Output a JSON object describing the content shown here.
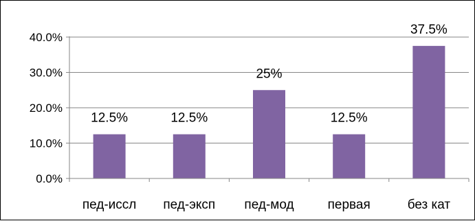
{
  "chart_data": {
    "type": "bar",
    "title": "",
    "xlabel": "",
    "ylabel": "",
    "categories": [
      "пед-иссл",
      "пед-эксп",
      "пед-мод",
      "первая",
      "без кат"
    ],
    "values": [
      12.5,
      12.5,
      25,
      12.5,
      37.5
    ],
    "data_labels": [
      "12.5%",
      "12.5%",
      "25%",
      "12.5%",
      "37.5%"
    ],
    "ylim": [
      0,
      40
    ],
    "yticks": [
      0,
      10,
      20,
      30,
      40
    ],
    "ytick_labels": [
      "0.0%",
      "10.0%",
      "20.0%",
      "30.0%",
      "40.0%"
    ],
    "grid": true,
    "legend": "none",
    "bar_color": "#8064A2",
    "grid_color": "#868686"
  }
}
